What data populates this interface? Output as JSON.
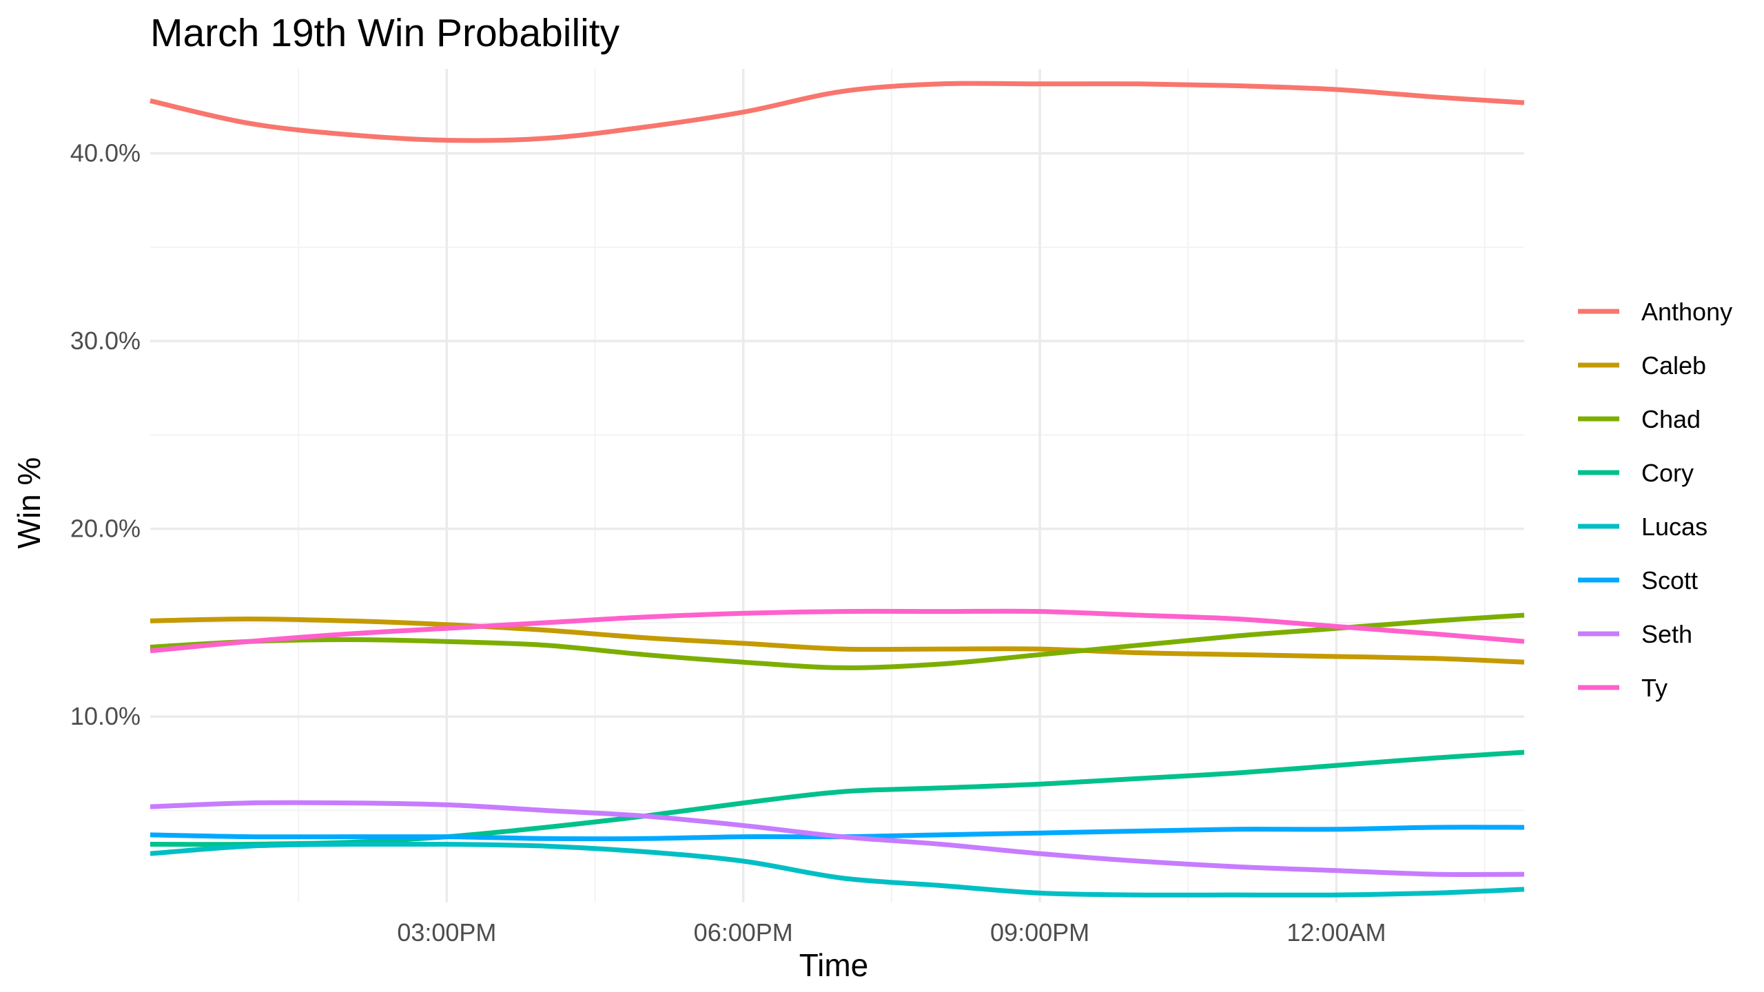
{
  "chart_data": {
    "type": "line",
    "title": "March 19th Win Probability",
    "xlabel": "Time",
    "ylabel": "Win %",
    "x_ticks": [
      {
        "label": "03:00PM",
        "hours": 15
      },
      {
        "label": "06:00PM",
        "hours": 18
      },
      {
        "label": "09:00PM",
        "hours": 21
      },
      {
        "label": "12:00AM",
        "hours": 24
      }
    ],
    "y_ticks": [
      {
        "label": "10.0%",
        "value": 10
      },
      {
        "label": "20.0%",
        "value": 20
      },
      {
        "label": "30.0%",
        "value": 30
      },
      {
        "label": "40.0%",
        "value": 40
      }
    ],
    "xlim": [
      12.0,
      25.9
    ],
    "ylim": [
      0.1,
      44.5
    ],
    "grid": true,
    "legend_position": "right",
    "series": [
      {
        "name": "Anthony",
        "color": "#F8766D",
        "x": [
          12.0,
          13.0,
          14.0,
          15.0,
          16.0,
          17.0,
          18.0,
          19.0,
          20.0,
          21.0,
          22.0,
          23.0,
          24.0,
          25.0,
          25.9
        ],
        "values": [
          42.8,
          41.6,
          41.0,
          40.7,
          40.8,
          41.4,
          42.2,
          43.3,
          43.7,
          43.7,
          43.7,
          43.6,
          43.4,
          43.0,
          42.7
        ]
      },
      {
        "name": "Caleb",
        "color": "#C49A00",
        "x": [
          12.0,
          13.0,
          14.0,
          15.0,
          16.0,
          17.0,
          18.0,
          19.0,
          20.0,
          21.0,
          22.0,
          23.0,
          24.0,
          25.0,
          25.9
        ],
        "values": [
          15.1,
          15.2,
          15.1,
          14.9,
          14.6,
          14.2,
          13.9,
          13.6,
          13.6,
          13.6,
          13.4,
          13.3,
          13.2,
          13.1,
          12.9
        ]
      },
      {
        "name": "Chad",
        "color": "#7CAE00",
        "x": [
          12.0,
          13.0,
          14.0,
          15.0,
          16.0,
          17.0,
          18.0,
          19.0,
          20.0,
          21.0,
          22.0,
          23.0,
          24.0,
          25.0,
          25.9
        ],
        "values": [
          13.7,
          14.0,
          14.1,
          14.0,
          13.8,
          13.3,
          12.9,
          12.6,
          12.8,
          13.3,
          13.8,
          14.3,
          14.7,
          15.1,
          15.4
        ]
      },
      {
        "name": "Cory",
        "color": "#00C08B",
        "x": [
          12.0,
          13.0,
          14.0,
          15.0,
          16.0,
          17.0,
          18.0,
          19.0,
          20.0,
          21.0,
          22.0,
          23.0,
          24.0,
          25.0,
          25.9
        ],
        "values": [
          3.2,
          3.2,
          3.3,
          3.6,
          4.1,
          4.7,
          5.4,
          6.0,
          6.2,
          6.4,
          6.7,
          7.0,
          7.4,
          7.8,
          8.1
        ]
      },
      {
        "name": "Lucas",
        "color": "#00BFC4",
        "x": [
          12.0,
          13.0,
          14.0,
          15.0,
          16.0,
          17.0,
          18.0,
          19.0,
          20.0,
          21.0,
          22.0,
          23.0,
          24.0,
          25.0,
          25.9
        ],
        "values": [
          2.7,
          3.1,
          3.2,
          3.2,
          3.1,
          2.8,
          2.3,
          1.4,
          1.0,
          0.6,
          0.5,
          0.5,
          0.5,
          0.6,
          0.8
        ]
      },
      {
        "name": "Scott",
        "color": "#00A9FF",
        "x": [
          12.0,
          13.0,
          14.0,
          15.0,
          16.0,
          17.0,
          18.0,
          19.0,
          20.0,
          21.0,
          22.0,
          23.0,
          24.0,
          25.0,
          25.9
        ],
        "values": [
          3.7,
          3.6,
          3.6,
          3.6,
          3.5,
          3.5,
          3.6,
          3.6,
          3.7,
          3.8,
          3.9,
          4.0,
          4.0,
          4.1,
          4.1
        ]
      },
      {
        "name": "Seth",
        "color": "#C77CFF",
        "x": [
          12.0,
          13.0,
          14.0,
          15.0,
          16.0,
          17.0,
          18.0,
          19.0,
          20.0,
          21.0,
          22.0,
          23.0,
          24.0,
          25.0,
          25.9
        ],
        "values": [
          5.2,
          5.4,
          5.4,
          5.3,
          5.0,
          4.7,
          4.2,
          3.6,
          3.2,
          2.7,
          2.3,
          2.0,
          1.8,
          1.6,
          1.6
        ]
      },
      {
        "name": "Ty",
        "color": "#FF61CC",
        "x": [
          12.0,
          13.0,
          14.0,
          15.0,
          16.0,
          17.0,
          18.0,
          19.0,
          20.0,
          21.0,
          22.0,
          23.0,
          24.0,
          25.0,
          25.9
        ],
        "values": [
          13.5,
          14.0,
          14.4,
          14.7,
          15.0,
          15.3,
          15.5,
          15.6,
          15.6,
          15.6,
          15.4,
          15.2,
          14.8,
          14.4,
          14.0
        ]
      }
    ]
  }
}
